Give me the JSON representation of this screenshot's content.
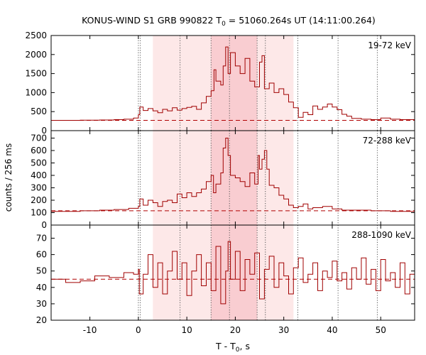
{
  "title_main": "KONUS-WIND S1 GRB 990822 T",
  "title_sub": "0",
  "title_rest": " = 51060.264s UT (14:11:00.264)",
  "ylabel": "counts / 256 ms",
  "xlabel_main": "T - T",
  "xlabel_sub": "0",
  "xlabel_rest": ", s",
  "colors": {
    "series": "#a00000",
    "background_line": "#b00000",
    "shade_light": "#fde8e8",
    "shade_dark": "#f9cdd1",
    "vline": "#555555",
    "frame": "#000000"
  },
  "chart_data": [
    {
      "type": "line",
      "panel_label": "19-72 keV",
      "xlim": [
        -18,
        57
      ],
      "ylim": [
        0,
        2500
      ],
      "yticks": [
        0,
        500,
        1000,
        1500,
        2000,
        2500
      ],
      "xticks": [
        -10,
        0,
        10,
        20,
        30,
        40,
        50
      ],
      "background_level": 270,
      "shaded_intervals": [
        [
          3.0,
          32.0
        ],
        [
          15.0,
          24.5
        ]
      ],
      "vertical_lines": [
        0.0,
        0.4,
        8.6,
        15.0,
        18.8,
        24.5,
        26.2,
        32.9,
        41.2,
        49.3
      ],
      "series": [
        {
          "points": [
            [
              -18,
              270
            ],
            [
              -12,
              275
            ],
            [
              -8,
              280
            ],
            [
              -5,
              290
            ],
            [
              -3,
              300
            ],
            [
              -1,
              330
            ],
            [
              0,
              420
            ],
            [
              0.3,
              620
            ],
            [
              1,
              530
            ],
            [
              2,
              580
            ],
            [
              3,
              520
            ],
            [
              4,
              470
            ],
            [
              5,
              560
            ],
            [
              6,
              520
            ],
            [
              7,
              600
            ],
            [
              8,
              540
            ],
            [
              9,
              580
            ],
            [
              10,
              610
            ],
            [
              11,
              640
            ],
            [
              12,
              560
            ],
            [
              13,
              730
            ],
            [
              14,
              900
            ],
            [
              15,
              1050
            ],
            [
              15.6,
              1600
            ],
            [
              16,
              1300
            ],
            [
              17,
              1200
            ],
            [
              17.5,
              1700
            ],
            [
              18,
              2200
            ],
            [
              18.5,
              1500
            ],
            [
              19,
              2050
            ],
            [
              20,
              1700
            ],
            [
              21,
              1500
            ],
            [
              22,
              1900
            ],
            [
              23,
              1300
            ],
            [
              24,
              1150
            ],
            [
              25,
              1800
            ],
            [
              25.5,
              1970
            ],
            [
              26,
              1100
            ],
            [
              27,
              1250
            ],
            [
              28,
              1000
            ],
            [
              29,
              1100
            ],
            [
              30,
              950
            ],
            [
              31,
              750
            ],
            [
              32,
              600
            ],
            [
              33,
              350
            ],
            [
              34,
              480
            ],
            [
              35,
              420
            ],
            [
              36,
              650
            ],
            [
              37,
              560
            ],
            [
              38,
              620
            ],
            [
              39,
              700
            ],
            [
              40,
              620
            ],
            [
              41,
              550
            ],
            [
              42,
              430
            ],
            [
              43,
              380
            ],
            [
              44,
              320
            ],
            [
              46,
              300
            ],
            [
              48,
              290
            ],
            [
              50,
              330
            ],
            [
              52,
              300
            ],
            [
              54,
              290
            ],
            [
              57,
              280
            ]
          ]
        }
      ]
    },
    {
      "type": "line",
      "panel_label": "72-288 keV",
      "xlim": [
        -18,
        57
      ],
      "ylim": [
        0,
        760
      ],
      "yticks": [
        0,
        100,
        200,
        300,
        400,
        500,
        600,
        700
      ],
      "xticks": [
        -10,
        0,
        10,
        20,
        30,
        40,
        50
      ],
      "background_level": 115,
      "shaded_intervals": [
        [
          3.0,
          32.0
        ],
        [
          15.0,
          24.5
        ]
      ],
      "vertical_lines": [
        0.0,
        0.4,
        8.6,
        15.0,
        18.8,
        24.5,
        26.2,
        32.9,
        41.2,
        49.3
      ],
      "series": [
        {
          "points": [
            [
              -18,
              110
            ],
            [
              -12,
              115
            ],
            [
              -8,
              120
            ],
            [
              -5,
              125
            ],
            [
              -2,
              135
            ],
            [
              0,
              150
            ],
            [
              0.3,
              210
            ],
            [
              1,
              160
            ],
            [
              2,
              200
            ],
            [
              3,
              180
            ],
            [
              4,
              150
            ],
            [
              5,
              190
            ],
            [
              6,
              200
            ],
            [
              7,
              180
            ],
            [
              8,
              250
            ],
            [
              9,
              220
            ],
            [
              10,
              260
            ],
            [
              11,
              230
            ],
            [
              12,
              260
            ],
            [
              13,
              290
            ],
            [
              14,
              350
            ],
            [
              15,
              400
            ],
            [
              15.5,
              260
            ],
            [
              16,
              330
            ],
            [
              17,
              420
            ],
            [
              17.5,
              620
            ],
            [
              18,
              700
            ],
            [
              18.5,
              560
            ],
            [
              19,
              400
            ],
            [
              20,
              380
            ],
            [
              21,
              350
            ],
            [
              22,
              310
            ],
            [
              23,
              420
            ],
            [
              24,
              330
            ],
            [
              24.7,
              560
            ],
            [
              25,
              450
            ],
            [
              25.5,
              530
            ],
            [
              26,
              600
            ],
            [
              26.5,
              450
            ],
            [
              27,
              320
            ],
            [
              28,
              300
            ],
            [
              29,
              240
            ],
            [
              30,
              210
            ],
            [
              31,
              160
            ],
            [
              32,
              140
            ],
            [
              33,
              150
            ],
            [
              34,
              170
            ],
            [
              35,
              130
            ],
            [
              36,
              140
            ],
            [
              38,
              150
            ],
            [
              40,
              130
            ],
            [
              42,
              120
            ],
            [
              45,
              120
            ],
            [
              48,
              115
            ],
            [
              52,
              110
            ],
            [
              57,
              105
            ]
          ]
        }
      ]
    },
    {
      "type": "line",
      "panel_label": "288-1090 keV",
      "xlim": [
        -18,
        57
      ],
      "ylim": [
        20,
        78
      ],
      "yticks": [
        20,
        30,
        40,
        50,
        60,
        70
      ],
      "xticks": [
        -10,
        0,
        10,
        20,
        30,
        40,
        50
      ],
      "background_level": 45,
      "shaded_intervals": [
        [
          3.0,
          32.0
        ],
        [
          15.0,
          24.5
        ]
      ],
      "vertical_lines": [
        0.0,
        0.4,
        8.6,
        15.0,
        18.8,
        24.5,
        26.2,
        32.9,
        41.2,
        49.3
      ],
      "series": [
        {
          "points": [
            [
              -18,
              45
            ],
            [
              -15,
              43
            ],
            [
              -12,
              44
            ],
            [
              -9,
              47
            ],
            [
              -6,
              46
            ],
            [
              -3,
              49
            ],
            [
              -1,
              48
            ],
            [
              0,
              51
            ],
            [
              0.2,
              36
            ],
            [
              1,
              48
            ],
            [
              2,
              60
            ],
            [
              3,
              40
            ],
            [
              4,
              55
            ],
            [
              5,
              36
            ],
            [
              6,
              50
            ],
            [
              7,
              62
            ],
            [
              8,
              45
            ],
            [
              9,
              55
            ],
            [
              10,
              35
            ],
            [
              11,
              50
            ],
            [
              12,
              60
            ],
            [
              13,
              41
            ],
            [
              14,
              55
            ],
            [
              15,
              38
            ],
            [
              16,
              65
            ],
            [
              17,
              30
            ],
            [
              18,
              50
            ],
            [
              18.5,
              68
            ],
            [
              19,
              45
            ],
            [
              20,
              62
            ],
            [
              21,
              38
            ],
            [
              22,
              57
            ],
            [
              23,
              48
            ],
            [
              24,
              61
            ],
            [
              25,
              33
            ],
            [
              26,
              51
            ],
            [
              27,
              59
            ],
            [
              28,
              40
            ],
            [
              29,
              55
            ],
            [
              30,
              47
            ],
            [
              31,
              36
            ],
            [
              32,
              52
            ],
            [
              33,
              58
            ],
            [
              34,
              43
            ],
            [
              35,
              48
            ],
            [
              36,
              55
            ],
            [
              37,
              38
            ],
            [
              38,
              50
            ],
            [
              39,
              46
            ],
            [
              40,
              56
            ],
            [
              41,
              44
            ],
            [
              42,
              49
            ],
            [
              43,
              39
            ],
            [
              44,
              52
            ],
            [
              45,
              45
            ],
            [
              46,
              58
            ],
            [
              47,
              42
            ],
            [
              48,
              51
            ],
            [
              49,
              38
            ],
            [
              50,
              57
            ],
            [
              51,
              44
            ],
            [
              52,
              49
            ],
            [
              53,
              40
            ],
            [
              54,
              55
            ],
            [
              55,
              36
            ],
            [
              56,
              48
            ],
            [
              57,
              45
            ]
          ]
        }
      ]
    }
  ]
}
